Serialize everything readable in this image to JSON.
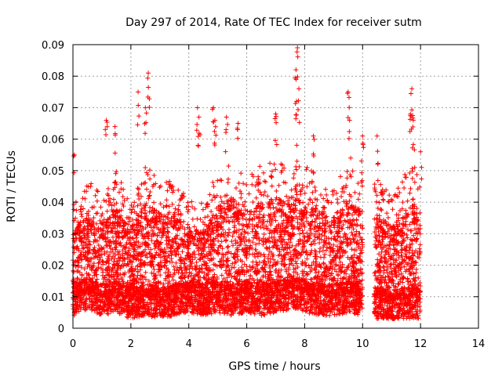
{
  "chart_data": {
    "type": "scatter",
    "title": "Day 297 of 2014, Rate Of TEC Index for receiver sutm",
    "xlabel": "GPS time / hours",
    "ylabel": "ROTI / TECUs",
    "xlim": [
      0,
      14
    ],
    "ylim": [
      0,
      0.09
    ],
    "grid": true,
    "marker": "+",
    "series_color": "#ff0000",
    "x_tick_labels": [
      "0",
      "2",
      "4",
      "6",
      "8",
      "10",
      "12",
      "14"
    ],
    "y_tick_labels": [
      "0",
      "0.01",
      "0.02",
      "0.03",
      "0.04",
      "0.05",
      "0.06",
      "0.07",
      "0.08",
      "0.09"
    ],
    "observation_windows_hours": [
      [
        0.0,
        10.0
      ],
      [
        10.4,
        10.6
      ],
      [
        10.6,
        12.0
      ]
    ],
    "envelope": {
      "x": [
        0.0,
        0.5,
        1.0,
        1.5,
        2.0,
        2.5,
        3.0,
        3.5,
        4.0,
        4.5,
        5.0,
        5.5,
        6.0,
        6.5,
        7.0,
        7.5,
        7.75,
        8.0,
        8.5,
        9.0,
        9.5,
        10.0,
        10.5,
        11.0,
        11.5,
        12.0
      ],
      "typical_high": [
        0.038,
        0.045,
        0.042,
        0.048,
        0.04,
        0.05,
        0.046,
        0.045,
        0.04,
        0.038,
        0.048,
        0.052,
        0.046,
        0.05,
        0.052,
        0.048,
        0.06,
        0.05,
        0.046,
        0.044,
        0.05,
        0.046,
        0.046,
        0.04,
        0.048,
        0.05
      ],
      "baseline": [
        0.01,
        0.012,
        0.01,
        0.011,
        0.009,
        0.01,
        0.009,
        0.01,
        0.011,
        0.01,
        0.011,
        0.01,
        0.011,
        0.01,
        0.011,
        0.012,
        0.012,
        0.011,
        0.01,
        0.01,
        0.011,
        0.01,
        0.009,
        0.008,
        0.009,
        0.009
      ]
    },
    "peaks": [
      {
        "x": 0.05,
        "y": 0.055
      },
      {
        "x": 1.15,
        "y": 0.066
      },
      {
        "x": 1.45,
        "y": 0.064
      },
      {
        "x": 2.25,
        "y": 0.075
      },
      {
        "x": 2.6,
        "y": 0.081
      },
      {
        "x": 2.5,
        "y": 0.07
      },
      {
        "x": 4.3,
        "y": 0.07
      },
      {
        "x": 4.35,
        "y": 0.067
      },
      {
        "x": 4.85,
        "y": 0.07
      },
      {
        "x": 4.9,
        "y": 0.066
      },
      {
        "x": 5.3,
        "y": 0.067
      },
      {
        "x": 5.7,
        "y": 0.065
      },
      {
        "x": 7.0,
        "y": 0.068
      },
      {
        "x": 7.75,
        "y": 0.089
      },
      {
        "x": 7.7,
        "y": 0.082
      },
      {
        "x": 7.8,
        "y": 0.076
      },
      {
        "x": 7.72,
        "y": 0.072
      },
      {
        "x": 8.3,
        "y": 0.061
      },
      {
        "x": 9.5,
        "y": 0.075
      },
      {
        "x": 9.55,
        "y": 0.066
      },
      {
        "x": 10.0,
        "y": 0.061
      },
      {
        "x": 10.5,
        "y": 0.061
      },
      {
        "x": 11.7,
        "y": 0.076
      },
      {
        "x": 11.65,
        "y": 0.068
      },
      {
        "x": 11.75,
        "y": 0.066
      },
      {
        "x": 12.0,
        "y": 0.056
      }
    ]
  }
}
